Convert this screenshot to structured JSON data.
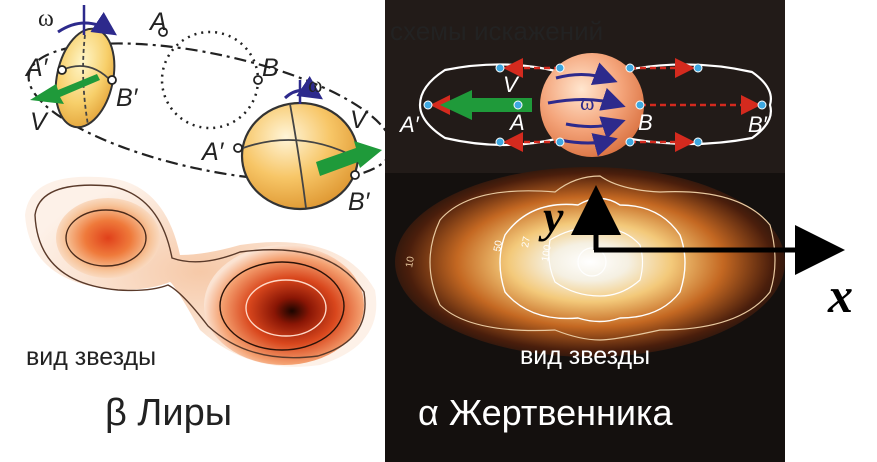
{
  "left_panel": {
    "labels": {
      "omega_top": "ω",
      "a_top": "A",
      "b_top": "B",
      "a_prime_top": "A′",
      "b_prime_top": "B′",
      "v_top": "V",
      "omega_mid": "ω",
      "v_mid": "V",
      "a_prime_mid": "A′",
      "b_prime_mid": "B′"
    },
    "star_view_caption": "вид звезды",
    "star_name": "β Лиры"
  },
  "right_panel": {
    "title": "схемы искажений",
    "labels": {
      "v": "V",
      "a_prime": "A′",
      "a": "A",
      "omega": "ω",
      "b": "B",
      "b_prime": "B′"
    },
    "contour_values": [
      "10",
      "50",
      "27",
      "100"
    ],
    "star_view_caption": "вид звезды",
    "star_name": "α Жертвенника"
  },
  "axes": {
    "x_label": "x",
    "y_label": "y"
  },
  "colors": {
    "arrow_green": "#1f9a3a",
    "arrow_red": "#d42a1e",
    "arrow_blue": "#2d2a8c",
    "dark_background": "#14100e"
  }
}
